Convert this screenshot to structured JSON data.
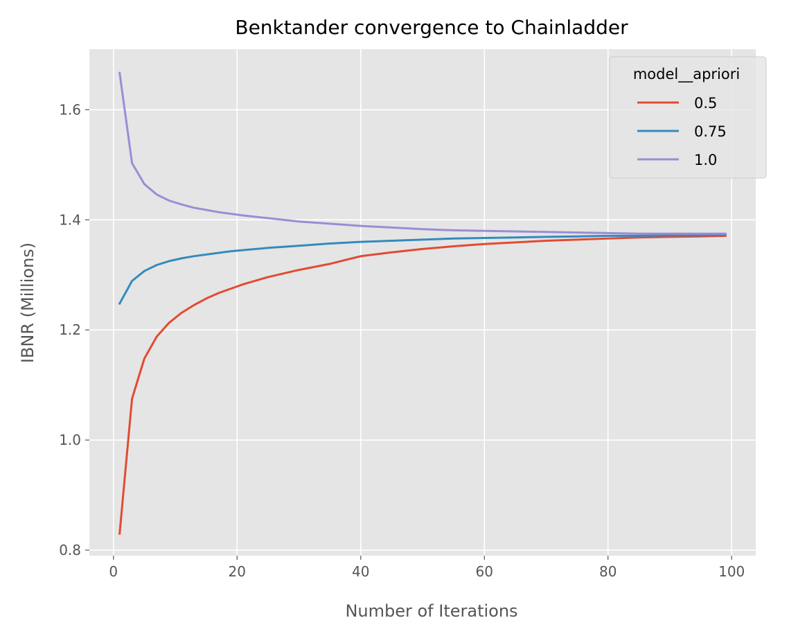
{
  "chart_data": {
    "type": "line",
    "title": "Benktander convergence to Chainladder",
    "xlabel": "Number of Iterations",
    "ylabel": "IBNR (Millions)",
    "xlim": [
      -3.9,
      103.9
    ],
    "ylim": [
      0.79,
      1.71
    ],
    "xticks": [
      0,
      20,
      40,
      60,
      80,
      100
    ],
    "yticks": [
      0.8,
      1.0,
      1.2,
      1.4,
      1.6
    ],
    "xtick_labels": [
      "0",
      "20",
      "40",
      "60",
      "80",
      "100"
    ],
    "ytick_labels": [
      "0.8",
      "1.0",
      "1.2",
      "1.4",
      "1.6"
    ],
    "grid": true,
    "legend": {
      "title": "model__apriori",
      "placement": "top-right"
    },
    "x": [
      1,
      3,
      5,
      7,
      9,
      11,
      13,
      15,
      17,
      19,
      21,
      25,
      30,
      35,
      40,
      45,
      50,
      55,
      60,
      65,
      70,
      75,
      80,
      85,
      90,
      95,
      99
    ],
    "series": [
      {
        "name": "0.5",
        "color": "#E24A33",
        "values": [
          0.83,
          1.075,
          1.148,
          1.188,
          1.213,
          1.231,
          1.245,
          1.257,
          1.267,
          1.275,
          1.283,
          1.296,
          1.309,
          1.32,
          1.334,
          1.341,
          1.347,
          1.352,
          1.356,
          1.359,
          1.362,
          1.364,
          1.366,
          1.368,
          1.369,
          1.37,
          1.371
        ]
      },
      {
        "name": "0.75",
        "color": "#348ABD",
        "values": [
          1.248,
          1.289,
          1.307,
          1.318,
          1.325,
          1.33,
          1.334,
          1.337,
          1.34,
          1.343,
          1.345,
          1.349,
          1.353,
          1.357,
          1.36,
          1.362,
          1.364,
          1.366,
          1.367,
          1.368,
          1.369,
          1.37,
          1.371,
          1.371,
          1.372,
          1.372,
          1.373
        ]
      },
      {
        "name": "1.0",
        "color": "#988ED5",
        "values": [
          1.667,
          1.503,
          1.465,
          1.446,
          1.435,
          1.428,
          1.422,
          1.418,
          1.414,
          1.411,
          1.408,
          1.403,
          1.397,
          1.393,
          1.389,
          1.386,
          1.383,
          1.381,
          1.38,
          1.379,
          1.378,
          1.377,
          1.376,
          1.375,
          1.375,
          1.375,
          1.375
        ]
      }
    ]
  }
}
